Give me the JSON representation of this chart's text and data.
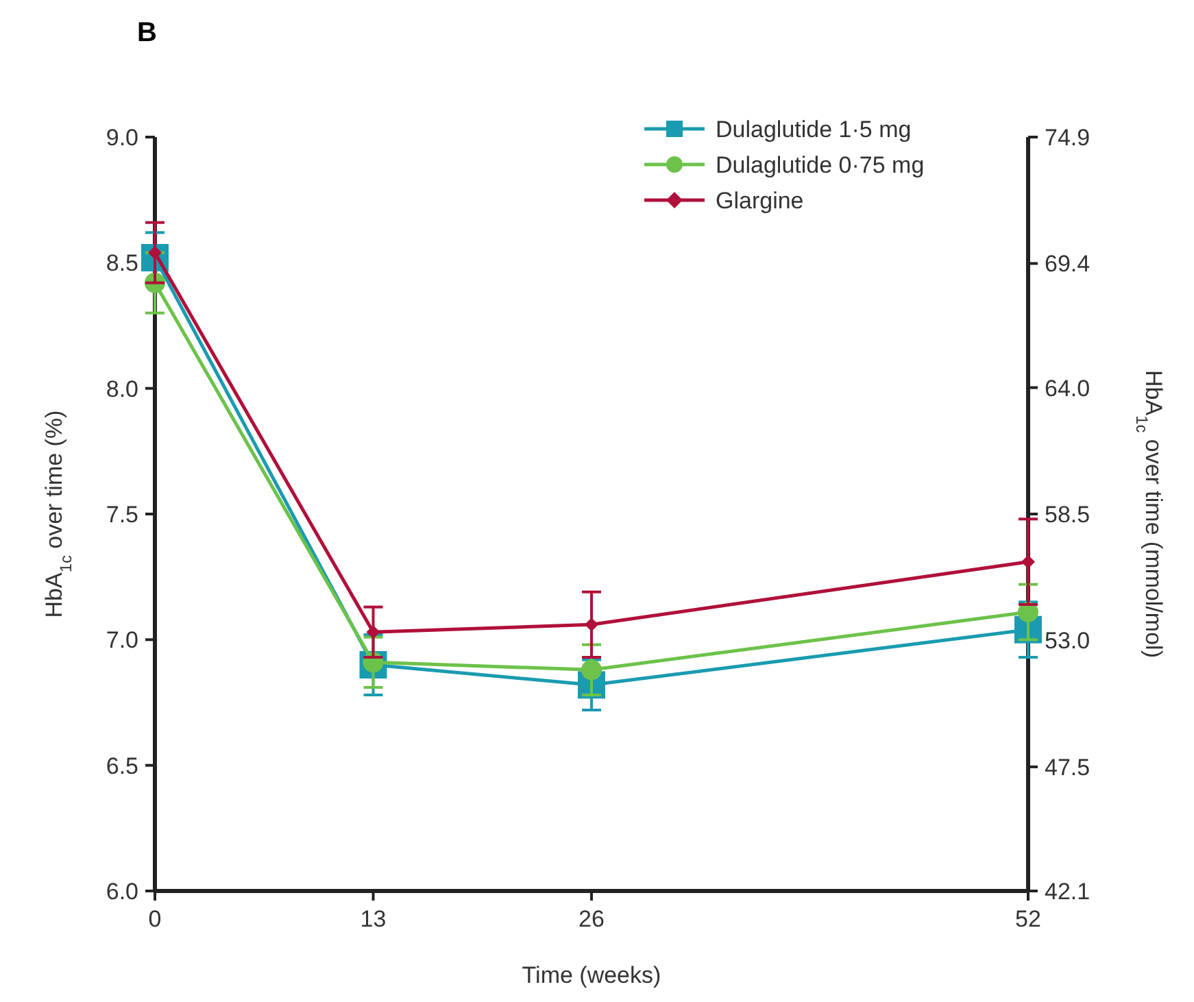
{
  "chart_data": {
    "type": "line",
    "title": "B",
    "xlabel": "Time (weeks)",
    "ylabel": "HbA$_{1c}$ over time (%)",
    "y2label": "HbA$_{1c}$ over time (mmol/mol)",
    "x": [
      0,
      13,
      26,
      52
    ],
    "xlim": [
      0,
      52
    ],
    "xticks": [
      0,
      13,
      26,
      52
    ],
    "ylim": [
      6,
      9
    ],
    "yticks": [
      {
        "value": 6,
        "label": "6.0"
      },
      {
        "value": 6.5,
        "label": "6.5"
      },
      {
        "value": 7,
        "label": "7.0"
      },
      {
        "value": 7.5,
        "label": "7.5"
      },
      {
        "value": 8,
        "label": "8.0"
      },
      {
        "value": 8.5,
        "label": "8.5"
      },
      {
        "value": 9,
        "label": "9.0"
      }
    ],
    "y2lim": [
      42.1,
      74.9
    ],
    "y2ticks": [
      42.1,
      47.5,
      {
        "value": 53,
        "label": "53.0"
      },
      58.5,
      {
        "value": 64,
        "label": "64.0"
      },
      69.4,
      74.9
    ],
    "legend": "top right",
    "grid": false,
    "series": [
      {
        "name": "Dulaglutide 1·5 mg",
        "color": "#1a9bb0",
        "marker": "square",
        "values": [
          8.52,
          6.9,
          6.82,
          7.04
        ],
        "errors": [
          0.1,
          0.12,
          0.1,
          0.11
        ]
      },
      {
        "name": "Dulaglutide 0·75 mg",
        "color": "#6cc24a",
        "marker": "circle",
        "values": [
          8.42,
          6.91,
          6.88,
          7.11
        ],
        "errors": [
          0.12,
          0.1,
          0.1,
          0.11
        ]
      },
      {
        "name": "Glargine",
        "color": "#b0103a",
        "marker": "diamond",
        "values": [
          8.54,
          7.03,
          7.06,
          7.31
        ],
        "errors": [
          0.12,
          0.1,
          0.13,
          0.17
        ]
      }
    ]
  }
}
